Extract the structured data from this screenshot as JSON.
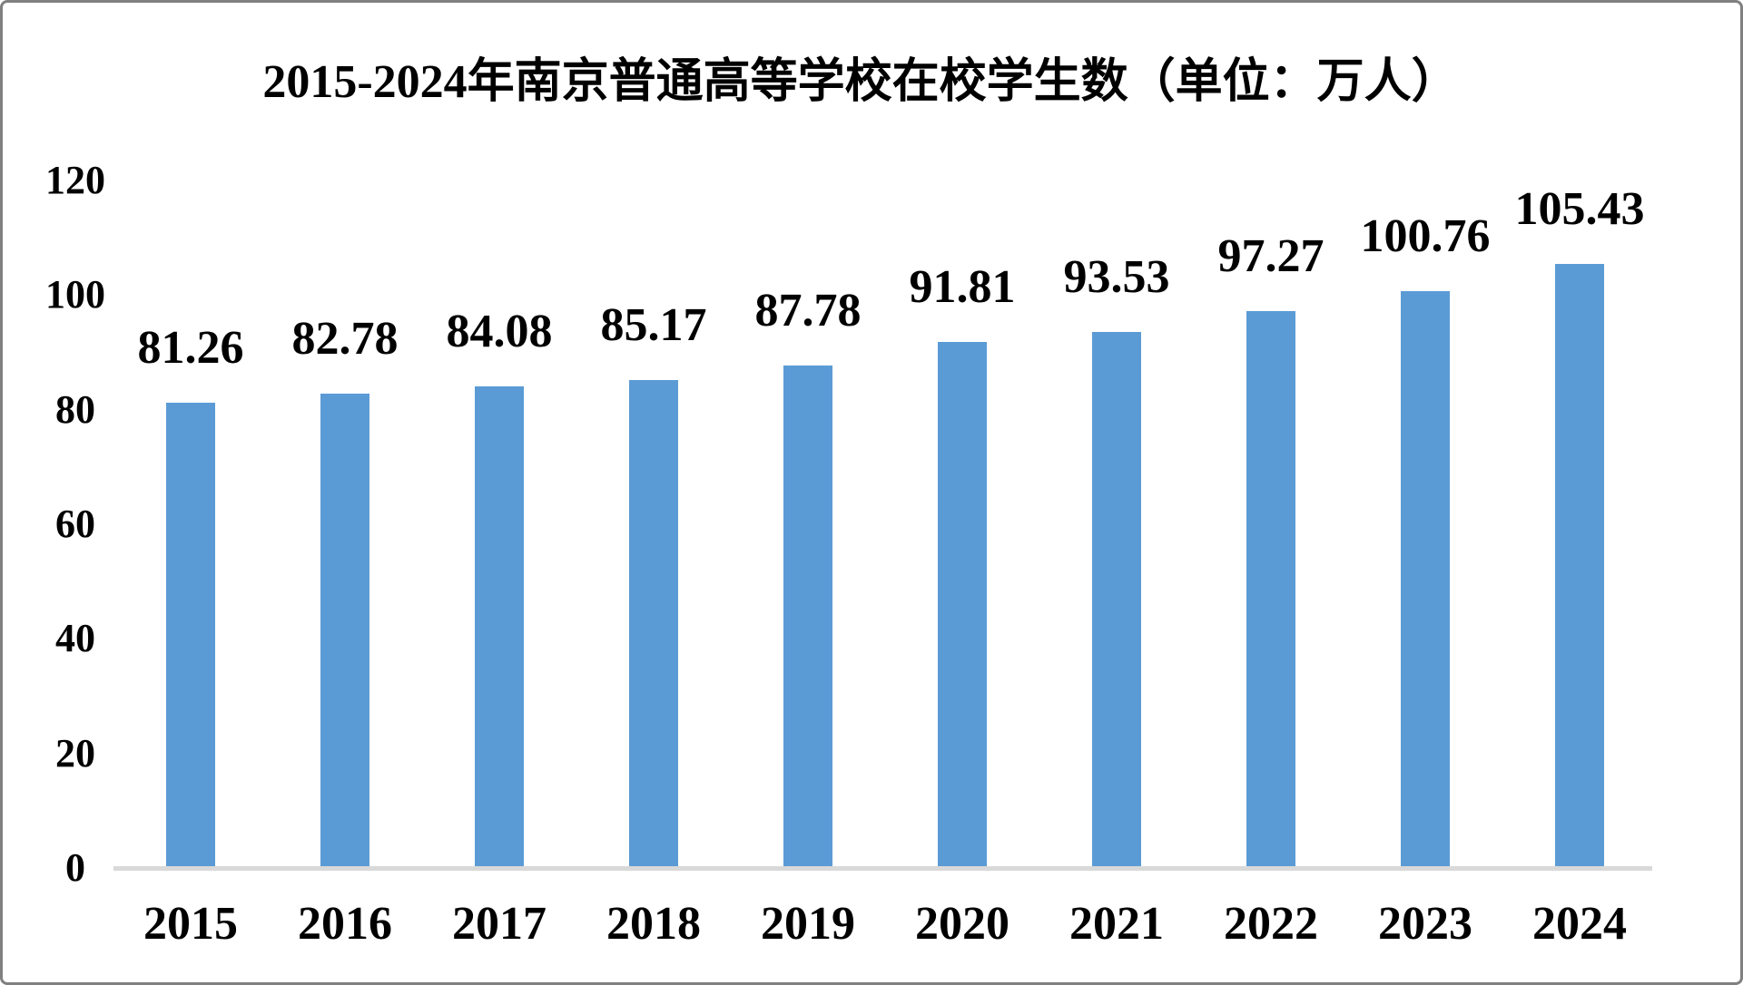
{
  "window": {
    "background": "#ffffff",
    "border_color": "#808080"
  },
  "chart_data": {
    "type": "bar",
    "title": "2015-2024年南京普通高等学校在校学生数（单位：万人）",
    "unit_label": "万人",
    "categories": [
      "2015",
      "2016",
      "2017",
      "2018",
      "2019",
      "2020",
      "2021",
      "2022",
      "2023",
      "2024"
    ],
    "values": [
      81.26,
      82.78,
      84.08,
      85.17,
      87.78,
      91.81,
      93.53,
      97.27,
      100.76,
      105.43
    ],
    "data_labels": [
      "81.26",
      "82.78",
      "84.08",
      "85.17",
      "87.78",
      "91.81",
      "93.53",
      "97.27",
      "100.76",
      "105.43"
    ],
    "xlabel": "",
    "ylabel": "",
    "ylim": [
      0,
      120
    ],
    "yticks": [
      "0",
      "20",
      "40",
      "60",
      "80",
      "100",
      "120"
    ],
    "grid": false,
    "legend": "none",
    "data_label_position": "outside-end",
    "bar_color": "#5B9BD5",
    "axis_line_color": "#D9D9D9",
    "text_color": "#000000"
  }
}
